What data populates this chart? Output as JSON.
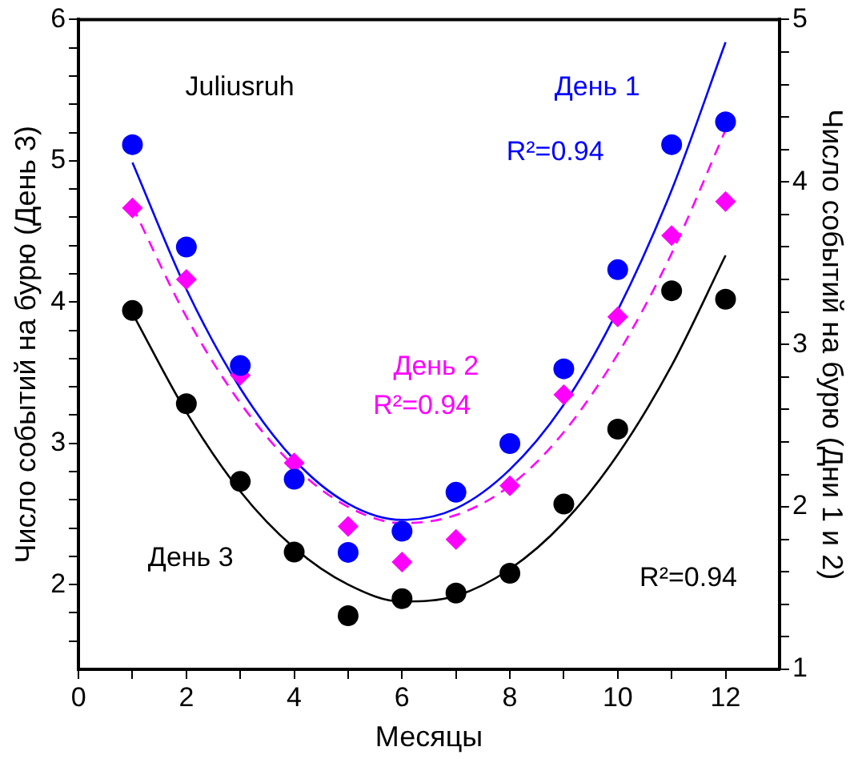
{
  "chart_data": {
    "type": "scatter",
    "xlabel": "Месяцы",
    "ylabel": "Число событий на бурю (День 3)",
    "y2label": "Число событий на бурю (Дни 1 и 2)",
    "annotations": [
      "Juliusruh",
      "R²=0.94",
      "R²=0.94",
      "R²=0.94"
    ],
    "x": [
      1,
      2,
      3,
      4,
      5,
      6,
      7,
      8,
      9,
      10,
      11,
      12
    ],
    "xlim": [
      0,
      13
    ],
    "xticks": [
      0,
      {
        "value": 1,
        "label": null
      },
      2,
      {
        "value": 3,
        "label": null
      },
      4,
      {
        "value": 5,
        "label": null
      },
      6,
      {
        "value": 7,
        "label": null
      },
      8,
      {
        "value": 9,
        "label": null
      },
      10,
      {
        "value": 11,
        "label": null
      },
      12
    ],
    "ylim": [
      1.4,
      6
    ],
    "yticks": [
      {
        "value": 1.6,
        "label": null
      },
      {
        "value": 1.8,
        "label": null
      },
      2,
      {
        "value": 2.2,
        "label": null
      },
      {
        "value": 2.4,
        "label": null
      },
      {
        "value": 2.6,
        "label": null
      },
      {
        "value": 2.8,
        "label": null
      },
      3,
      {
        "value": 3.2,
        "label": null
      },
      {
        "value": 3.4,
        "label": null
      },
      {
        "value": 3.6,
        "label": null
      },
      {
        "value": 3.8,
        "label": null
      },
      4,
      {
        "value": 4.2,
        "label": null
      },
      {
        "value": 4.4,
        "label": null
      },
      {
        "value": 4.6,
        "label": null
      },
      {
        "value": 4.8,
        "label": null
      },
      5,
      {
        "value": 5.2,
        "label": null
      },
      {
        "value": 5.4,
        "label": null
      },
      {
        "value": 5.6,
        "label": null
      },
      {
        "value": 5.8,
        "label": null
      },
      6
    ],
    "y2lim": [
      1,
      5
    ],
    "y2ticks": [
      1,
      {
        "value": 1.2,
        "label": null
      },
      {
        "value": 1.4,
        "label": null
      },
      {
        "value": 1.6,
        "label": null
      },
      {
        "value": 1.8,
        "label": null
      },
      2,
      {
        "value": 2.2,
        "label": null
      },
      {
        "value": 2.4,
        "label": null
      },
      {
        "value": 2.6,
        "label": null
      },
      {
        "value": 2.8,
        "label": null
      },
      3,
      {
        "value": 3.2,
        "label": null
      },
      {
        "value": 3.4,
        "label": null
      },
      {
        "value": 3.6,
        "label": null
      },
      {
        "value": 3.8,
        "label": null
      },
      4,
      {
        "value": 4.2,
        "label": null
      },
      {
        "value": 4.4,
        "label": null
      },
      {
        "value": 4.6,
        "label": null
      },
      {
        "value": 4.8,
        "label": null
      },
      5
    ],
    "grid": false,
    "legend": false,
    "series": [
      {
        "name": "День 1",
        "color": "#0000ff",
        "axis": "y2",
        "marker": "circle",
        "values": [
          4.23,
          3.6,
          2.87,
          2.17,
          1.72,
          1.85,
          2.09,
          2.39,
          2.85,
          3.46,
          4.23,
          4.37
        ]
      },
      {
        "name": "День 2",
        "color": "#ff00ff",
        "axis": "y2",
        "marker": "diamond",
        "values": [
          3.84,
          3.4,
          2.81,
          2.27,
          1.88,
          1.66,
          1.8,
          2.13,
          2.69,
          3.17,
          3.67,
          3.88
        ]
      },
      {
        "name": "День 3",
        "color": "#000000",
        "marker": "circle",
        "values": [
          3.94,
          3.28,
          2.73,
          2.23,
          1.78,
          1.9,
          1.94,
          2.08,
          2.57,
          3.1,
          4.08,
          4.02
        ]
      },
      {
        "type": "line",
        "color": "#0000ff",
        "axis": "y2",
        "marker": "none",
        "line_style": "solid",
        "values": [
          4.12,
          3.34,
          2.73,
          2.29,
          2.02,
          1.92,
          1.99,
          2.23,
          2.63,
          3.21,
          3.95,
          4.86
        ]
      },
      {
        "type": "line",
        "color": "#ff00ff",
        "axis": "y2",
        "marker": "none",
        "line_style": "dashed",
        "values": [
          3.85,
          3.17,
          2.64,
          2.25,
          2.0,
          1.9,
          1.95,
          2.13,
          2.46,
          2.94,
          3.56,
          4.32
        ]
      },
      {
        "type": "line",
        "color": "#000000",
        "marker": "none",
        "line_style": "solid",
        "values": [
          3.92,
          3.22,
          2.66,
          2.26,
          2.0,
          1.88,
          1.92,
          2.11,
          2.44,
          2.92,
          3.55,
          4.33
        ]
      }
    ]
  }
}
